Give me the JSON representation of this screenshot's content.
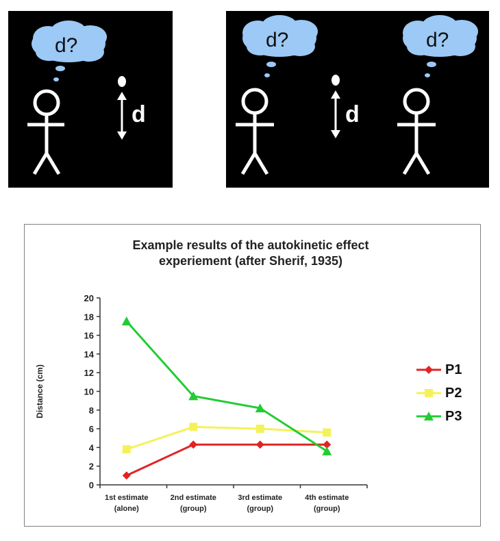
{
  "panels": {
    "left": {
      "bubble": "d?",
      "distance_label": "d"
    },
    "right": {
      "bubble_1": "d?",
      "bubble_2": "d?",
      "distance_label": "d"
    }
  },
  "colors": {
    "bubble": "#9cc9f5",
    "panel_bg": "#000000",
    "figure": "#ffffff"
  },
  "chart_data": {
    "type": "line",
    "title_lines": [
      "Example results of the autokinetic effect",
      "experiement (after Sherif, 1935)"
    ],
    "ylabel": "Distance (cm)",
    "xlabel": "",
    "ylim": [
      0,
      20
    ],
    "yticks": [
      0,
      2,
      4,
      6,
      8,
      10,
      12,
      14,
      16,
      18,
      20
    ],
    "categories": [
      [
        "1st estimate",
        "(alone)"
      ],
      [
        "2nd estimate",
        "(group)"
      ],
      [
        "3rd estimate",
        "(group)"
      ],
      [
        "4th estimate",
        "(group)"
      ]
    ],
    "legend_position": "right",
    "grid": false,
    "series": [
      {
        "name": "P1",
        "values": [
          1.0,
          4.3,
          4.3,
          4.3
        ],
        "color": "#e02424",
        "marker": "diamond"
      },
      {
        "name": "P2",
        "values": [
          3.8,
          6.2,
          6.0,
          5.6
        ],
        "color": "#f5f15a",
        "marker": "square"
      },
      {
        "name": "P3",
        "values": [
          17.5,
          9.5,
          8.2,
          3.6
        ],
        "color": "#22cc33",
        "marker": "triangle"
      }
    ]
  }
}
